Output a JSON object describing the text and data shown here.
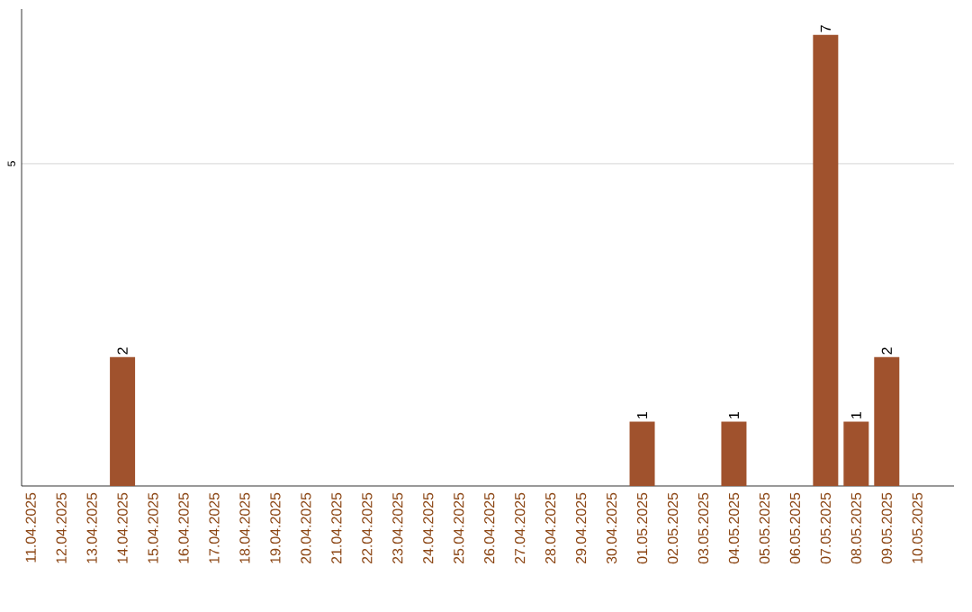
{
  "chart_data": {
    "type": "bar",
    "categories": [
      "11.04.2025",
      "12.04.2025",
      "13.04.2025",
      "14.04.2025",
      "15.04.2025",
      "16.04.2025",
      "17.04.2025",
      "18.04.2025",
      "19.04.2025",
      "20.04.2025",
      "21.04.2025",
      "22.04.2025",
      "23.04.2025",
      "24.04.2025",
      "25.04.2025",
      "26.04.2025",
      "27.04.2025",
      "28.04.2025",
      "29.04.2025",
      "30.04.2025",
      "01.05.2025",
      "02.05.2025",
      "03.05.2025",
      "04.05.2025",
      "05.05.2025",
      "06.05.2025",
      "07.05.2025",
      "08.05.2025",
      "09.05.2025",
      "10.05.2025"
    ],
    "values": [
      0,
      0,
      0,
      2,
      0,
      0,
      0,
      0,
      0,
      0,
      0,
      0,
      0,
      0,
      0,
      0,
      0,
      0,
      0,
      0,
      1,
      0,
      0,
      1,
      0,
      0,
      7,
      1,
      2,
      0
    ],
    "value_labels": [
      null,
      null,
      null,
      "2",
      null,
      null,
      null,
      null,
      null,
      null,
      null,
      null,
      null,
      null,
      null,
      null,
      null,
      null,
      null,
      null,
      "1",
      null,
      null,
      "1",
      null,
      null,
      "7",
      "1",
      "2",
      null
    ],
    "color": "#a0522d",
    "ylim": [
      0,
      7.4
    ],
    "yticks": [
      5
    ],
    "grid": "y"
  }
}
